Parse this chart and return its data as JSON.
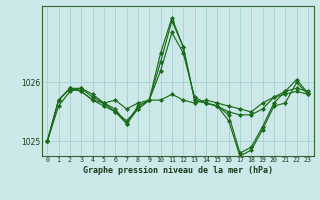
{
  "title": "Graphe pression niveau de la mer (hPa)",
  "bg_color": "#cce8e8",
  "grid_color": "#aad4d4",
  "line_color": "#1a6b1a",
  "marker_color": "#1a6b1a",
  "xlim": [
    -0.5,
    23.5
  ],
  "ylim": [
    1024.75,
    1027.3
  ],
  "yticks": [
    1025,
    1026
  ],
  "xticks": [
    0,
    1,
    2,
    3,
    4,
    5,
    6,
    7,
    8,
    9,
    10,
    11,
    12,
    13,
    14,
    15,
    16,
    17,
    18,
    19,
    20,
    21,
    22,
    23
  ],
  "series": [
    [
      1025.0,
      1025.6,
      1025.85,
      1025.9,
      1025.75,
      1025.65,
      1025.7,
      1025.55,
      1025.65,
      1025.7,
      1025.7,
      1025.8,
      1025.7,
      1025.65,
      1025.7,
      1025.65,
      1025.6,
      1025.55,
      1025.5,
      1025.65,
      1025.75,
      1025.8,
      1025.85,
      1025.8
    ],
    [
      1025.0,
      1025.7,
      1025.9,
      1025.85,
      1025.7,
      1025.6,
      1025.5,
      1025.35,
      1025.55,
      1025.7,
      1026.2,
      1026.85,
      1026.5,
      1025.75,
      1025.65,
      1025.6,
      1025.5,
      1025.45,
      1025.45,
      1025.55,
      1025.75,
      1025.85,
      1025.9,
      1025.85
    ],
    [
      1025.0,
      1025.7,
      1025.9,
      1025.85,
      1025.7,
      1025.65,
      1025.5,
      1025.3,
      1025.55,
      1025.7,
      1026.35,
      1027.05,
      1026.6,
      1025.7,
      1025.65,
      1025.6,
      1025.45,
      1024.8,
      1024.9,
      1025.25,
      1025.65,
      1025.85,
      1026.05,
      1025.82
    ],
    [
      1025.0,
      1025.7,
      1025.9,
      1025.9,
      1025.8,
      1025.65,
      1025.55,
      1025.3,
      1025.6,
      1025.7,
      1026.5,
      1027.1,
      1026.6,
      1025.7,
      1025.65,
      1025.6,
      1025.35,
      1024.75,
      1024.85,
      1025.2,
      1025.6,
      1025.65,
      1026.0,
      1025.8
    ]
  ]
}
